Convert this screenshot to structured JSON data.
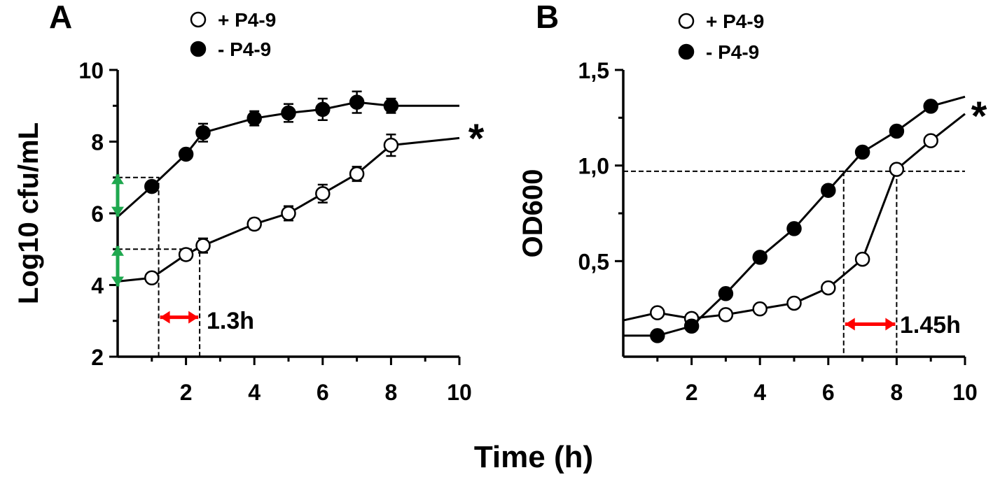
{
  "figure": {
    "xlabel": "Time (h)"
  },
  "colors": {
    "axis": "#000000",
    "marker_filled": "#000000",
    "marker_open": "#ffffff",
    "green_arrow": "#1fa84f",
    "red_arrow": "#ff0000"
  },
  "chart_data": [
    {
      "panel": "A",
      "type": "line",
      "ylabel": "Log10 cfu/mL",
      "xlim": [
        0,
        10
      ],
      "ylim": [
        2,
        10
      ],
      "xticks": [
        2,
        4,
        6,
        8,
        10
      ],
      "xticklabels": [
        "2",
        "4",
        "6",
        "8",
        "10"
      ],
      "yticks": [
        2,
        4,
        6,
        8,
        10
      ],
      "yticklabels": [
        "2",
        "4",
        "6",
        "8",
        "10"
      ],
      "legend": {
        "placement": "top-center",
        "entries": [
          "+ P4-9",
          "- P4-9"
        ]
      },
      "series": [
        {
          "name": "+ P4-9",
          "marker": "open-circle",
          "x": [
            1,
            2,
            2.5,
            4,
            5,
            6,
            7,
            8
          ],
          "y": [
            4.2,
            4.85,
            5.1,
            5.7,
            6.0,
            6.55,
            7.1,
            7.9
          ],
          "err": [
            0.05,
            0.15,
            0.2,
            0.15,
            0.2,
            0.25,
            0.2,
            0.3
          ],
          "line": {
            "x": [
              0,
              1,
              2,
              2.5,
              4,
              5,
              6,
              7,
              8,
              10
            ],
            "y": [
              4.1,
              4.2,
              4.85,
              5.1,
              5.7,
              6.0,
              6.55,
              7.1,
              7.9,
              8.1
            ]
          }
        },
        {
          "name": "- P4-9",
          "marker": "filled-circle",
          "x": [
            1,
            2,
            2.5,
            4,
            5,
            6,
            7,
            8
          ],
          "y": [
            6.75,
            7.65,
            8.25,
            8.65,
            8.8,
            8.9,
            9.1,
            9.0
          ],
          "err": [
            0.1,
            0.1,
            0.25,
            0.2,
            0.25,
            0.3,
            0.3,
            0.2
          ],
          "line": {
            "x": [
              0,
              1,
              2,
              2.5,
              4,
              5,
              6,
              7,
              8,
              10
            ],
            "y": [
              5.9,
              6.75,
              7.65,
              8.25,
              8.65,
              8.8,
              8.9,
              9.1,
              9.0,
              9.0
            ]
          }
        }
      ],
      "dashed_guides": [
        {
          "x": [
            0,
            1.2,
            1.2
          ],
          "y": [
            7.0,
            7.0,
            2
          ]
        },
        {
          "x": [
            0,
            2.4,
            2.4
          ],
          "y": [
            5.0,
            5.0,
            2
          ]
        }
      ],
      "green_arrows": [
        {
          "x": 0,
          "y": [
            5.95,
            7.05
          ]
        },
        {
          "x": 0,
          "y": [
            4.0,
            5.05
          ]
        }
      ],
      "red_arrow": {
        "x": [
          1.2,
          2.4
        ],
        "y": 3.1
      },
      "annotation": "1.3h",
      "significance": "*"
    },
    {
      "panel": "B",
      "type": "line",
      "ylabel": "OD600",
      "xlim": [
        0,
        10
      ],
      "ylim": [
        0,
        1.5
      ],
      "xticks": [
        2,
        4,
        6,
        8,
        10
      ],
      "xticklabels": [
        "2",
        "4",
        "6",
        "8",
        "10"
      ],
      "yticks": [
        0.5,
        1.0,
        1.5
      ],
      "yticklabels": [
        "0,5",
        "1,0",
        "1,5"
      ],
      "legend": {
        "placement": "top-center",
        "entries": [
          "+ P4-9",
          "- P4-9"
        ]
      },
      "series": [
        {
          "name": "+ P4-9",
          "marker": "open-circle",
          "x": [
            1,
            2,
            3,
            4,
            5,
            6,
            7,
            8,
            9
          ],
          "y": [
            0.23,
            0.2,
            0.22,
            0.25,
            0.28,
            0.36,
            0.51,
            0.98,
            1.13
          ],
          "line": {
            "x": [
              0,
              1,
              2,
              3,
              4,
              5,
              6,
              7,
              8,
              9,
              10
            ],
            "y": [
              0.19,
              0.23,
              0.2,
              0.22,
              0.25,
              0.28,
              0.36,
              0.51,
              0.98,
              1.13,
              1.27
            ]
          }
        },
        {
          "name": "- P4-9",
          "marker": "filled-circle",
          "x": [
            1,
            2,
            3,
            4,
            5,
            6,
            7,
            8,
            9
          ],
          "y": [
            0.11,
            0.16,
            0.33,
            0.52,
            0.67,
            0.87,
            1.07,
            1.18,
            1.31
          ],
          "line": {
            "x": [
              0,
              1,
              2,
              3,
              4,
              5,
              6,
              7,
              8,
              9,
              10
            ],
            "y": [
              0.11,
              0.11,
              0.16,
              0.33,
              0.52,
              0.67,
              0.87,
              1.07,
              1.18,
              1.31,
              1.36
            ]
          }
        }
      ],
      "dashed_guides": [
        {
          "x": [
            0,
            10
          ],
          "y": [
            0.97,
            0.97
          ]
        },
        {
          "x": [
            6.45,
            6.45
          ],
          "y": [
            0.97,
            0
          ]
        },
        {
          "x": [
            8.0,
            8.0
          ],
          "y": [
            0.97,
            0
          ]
        }
      ],
      "red_arrow": {
        "x": [
          6.45,
          8.0
        ],
        "y": 0.17
      },
      "annotation": "1.45h",
      "significance": "*"
    }
  ]
}
